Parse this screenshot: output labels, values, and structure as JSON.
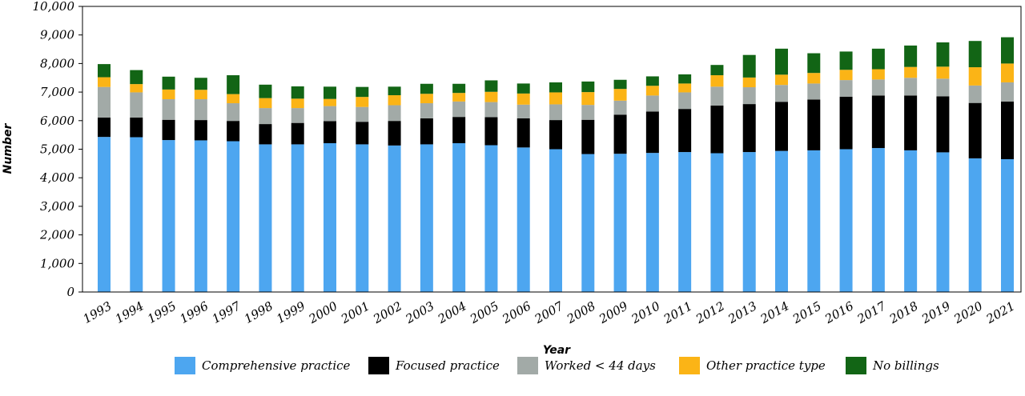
{
  "chart_data": {
    "type": "bar",
    "stacked": true,
    "xlabel": "Year",
    "ylabel": "Number",
    "ylim": [
      0,
      10000
    ],
    "y_ticks": [
      "0",
      "1,000",
      "2,000",
      "3,000",
      "4,000",
      "5,000",
      "6,000",
      "7,000",
      "8,000",
      "9,000",
      "10,000"
    ],
    "grid": false,
    "legend_position": "bottom",
    "categories": [
      "1993",
      "1994",
      "1995",
      "1996",
      "1997",
      "1998",
      "1999",
      "2000",
      "2001",
      "2002",
      "2003",
      "2004",
      "2005",
      "2006",
      "2007",
      "2008",
      "2009",
      "2010",
      "2011",
      "2012",
      "2013",
      "2014",
      "2015",
      "2016",
      "2017",
      "2018",
      "2019",
      "2020",
      "2021"
    ],
    "series": [
      {
        "name": "Comprehensive practice",
        "color": "#4da6f0",
        "values": [
          5430,
          5420,
          5320,
          5310,
          5280,
          5170,
          5170,
          5210,
          5170,
          5130,
          5170,
          5210,
          5140,
          5060,
          5000,
          4830,
          4840,
          4870,
          4900,
          4860,
          4900,
          4940,
          4960,
          5000,
          5040,
          4960,
          4890,
          4680,
          4650
        ]
      },
      {
        "name": "Focused practice",
        "color": "#000000",
        "values": [
          680,
          690,
          710,
          710,
          710,
          710,
          750,
          770,
          790,
          860,
          910,
          920,
          980,
          1020,
          1020,
          1200,
          1370,
          1450,
          1510,
          1670,
          1680,
          1720,
          1780,
          1840,
          1840,
          1920,
          1960,
          1940,
          2020
        ]
      },
      {
        "name": "Worked < 44 days",
        "color": "#a2aaa7",
        "values": [
          1070,
          880,
          720,
          730,
          620,
          560,
          520,
          530,
          520,
          550,
          530,
          540,
          530,
          480,
          550,
          520,
          490,
          560,
          580,
          660,
          590,
          590,
          560,
          580,
          560,
          620,
          620,
          610,
          670
        ]
      },
      {
        "name": "Other practice type",
        "color": "#fbb416",
        "values": [
          340,
          290,
          340,
          330,
          320,
          350,
          330,
          250,
          350,
          350,
          330,
          300,
          360,
          390,
          420,
          450,
          410,
          340,
          310,
          400,
          340,
          360,
          370,
          360,
          360,
          380,
          420,
          640,
          660
        ]
      },
      {
        "name": "No billings",
        "color": "#126515",
        "values": [
          460,
          490,
          450,
          420,
          660,
          470,
          430,
          430,
          350,
          300,
          350,
          320,
          400,
          350,
          350,
          370,
          320,
          330,
          320,
          360,
          790,
          910,
          690,
          640,
          720,
          750,
          850,
          920,
          920
        ]
      }
    ]
  }
}
